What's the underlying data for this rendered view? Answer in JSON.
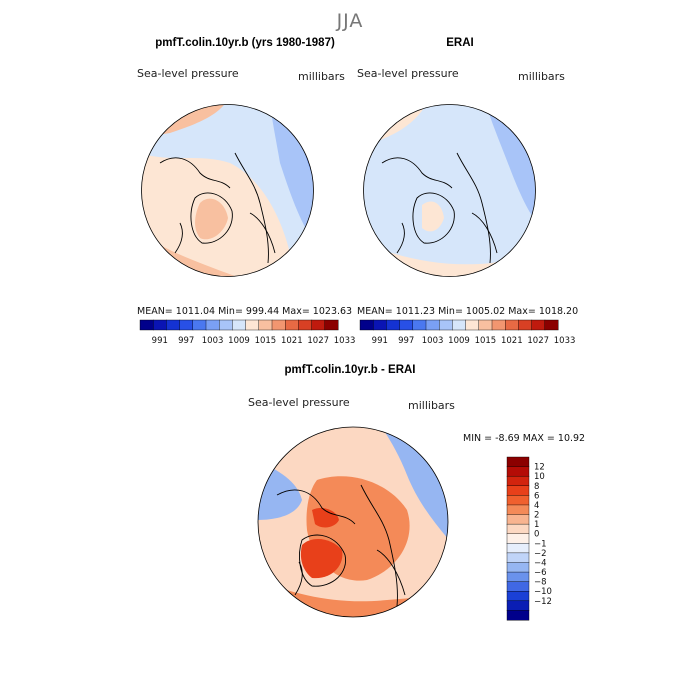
{
  "season": "JJA",
  "panels": [
    {
      "title": "pmfT.colin.10yr.b (yrs 1980-1987)",
      "variable": "Sea-level pressure",
      "units": "millibars",
      "stats": {
        "mean": "1011.04",
        "min": "999.44",
        "max": "1023.63"
      },
      "stats_text": "MEAN= 1011.04   Min=  999.44   Max= 1023.63"
    },
    {
      "title": "ERAI",
      "variable": "Sea-level pressure",
      "units": "millibars",
      "stats": {
        "mean": "1011.23",
        "min": "1005.02",
        "max": "1018.20"
      },
      "stats_text": "MEAN= 1011.23   Min= 1005.02   Max= 1018.20"
    },
    {
      "title": "pmfT.colin.10yr.b - ERAI",
      "variable": "Sea-level pressure",
      "units": "millibars",
      "stats": {
        "min": "-8.69",
        "max": "10.92"
      },
      "stats_text": "MIN =   -8.69  MAX =   10.92"
    }
  ],
  "colorbar_abs": {
    "labels": [
      "991",
      "997",
      "1003",
      "1009",
      "1015",
      "1021",
      "1027",
      "1033"
    ],
    "colors": [
      "#00008b",
      "#0a14b4",
      "#1432d2",
      "#2850e6",
      "#4a78f0",
      "#7aa0f4",
      "#a8c4f8",
      "#d6e6fa",
      "#fde6d4",
      "#f8c0a0",
      "#f29670",
      "#e86a44",
      "#d84024",
      "#c01a0e",
      "#8b0000"
    ]
  },
  "colorbar_diff": {
    "labels": [
      "12",
      "10",
      "8",
      "6",
      "4",
      "2",
      "1",
      "0",
      "−1",
      "−2",
      "−4",
      "−6",
      "−8",
      "−10",
      "−12"
    ],
    "colors": [
      "#8b0000",
      "#b40c06",
      "#d2240e",
      "#e8401a",
      "#f0602e",
      "#f48a58",
      "#f8b490",
      "#fcd8c2",
      "#fdf0e8",
      "#e6eefc",
      "#c0d4f8",
      "#96b6f2",
      "#6a92ec",
      "#4068e4",
      "#1a40d6",
      "#0a1eb4",
      "#00008b"
    ]
  },
  "colors": {
    "land_outline": "#000000",
    "abs_base": "#d6e6fa",
    "abs_high": "#fde6d4",
    "abs_higher": "#f8c0a0",
    "abs_low": "#a8c4f8",
    "abs_lower": "#7aa0f4",
    "diff_base": "#fcd8c2",
    "diff_pos": "#f48a58",
    "diff_strong": "#e8401a",
    "diff_neg": "#96b6f2"
  }
}
